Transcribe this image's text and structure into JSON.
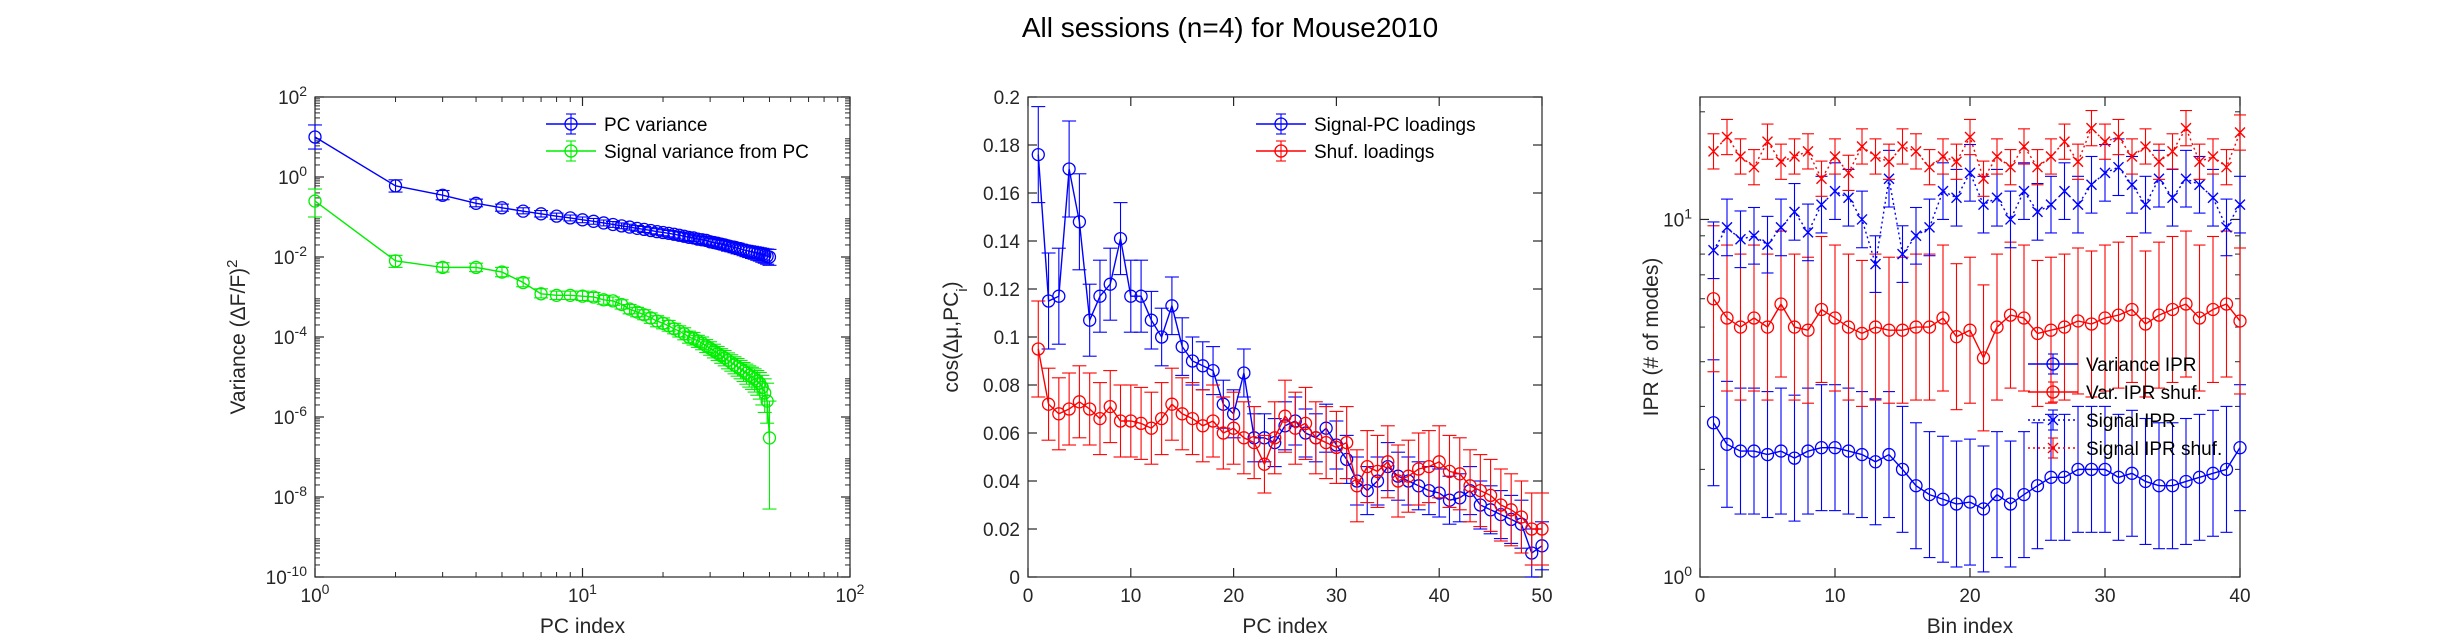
{
  "figure": {
    "title": "All sessions (n=4) for Mouse2010"
  },
  "chart_data": [
    {
      "type": "line",
      "xscale": "log",
      "yscale": "log",
      "xlim": [
        1,
        100
      ],
      "ylim": [
        1e-10,
        100
      ],
      "xlabel": "PC index",
      "ylabel_parts": [
        "Variance (",
        "Δ",
        "F/F)",
        "2"
      ],
      "xticks": [
        1,
        10,
        100
      ],
      "xtick_labels": [
        [
          "10",
          "0"
        ],
        [
          "10",
          "1"
        ],
        [
          "10",
          "2"
        ]
      ],
      "yticks": [
        1e-10,
        1e-08,
        1e-06,
        0.0001,
        0.01,
        1,
        100
      ],
      "ytick_labels": [
        [
          "10",
          "-10"
        ],
        [
          "10",
          "-8"
        ],
        [
          "10",
          "-6"
        ],
        [
          "10",
          "-4"
        ],
        [
          "10",
          "-2"
        ],
        [
          "10",
          "0"
        ],
        [
          "10",
          "2"
        ]
      ],
      "legend_position": "top-right",
      "x": [
        1,
        2,
        3,
        4,
        5,
        6,
        7,
        8,
        9,
        10,
        11,
        12,
        13,
        14,
        15,
        16,
        17,
        18,
        19,
        20,
        21,
        22,
        23,
        24,
        25,
        26,
        27,
        28,
        29,
        30,
        31,
        32,
        33,
        34,
        35,
        36,
        37,
        38,
        39,
        40,
        41,
        42,
        43,
        44,
        45,
        46,
        47,
        48,
        49,
        50
      ],
      "series": [
        {
          "name": "PC variance",
          "color": "#0000ff",
          "marker": "circle",
          "values": [
            10,
            0.6,
            0.35,
            0.22,
            0.17,
            0.14,
            0.12,
            0.105,
            0.095,
            0.085,
            0.078,
            0.071,
            0.065,
            0.06,
            0.056,
            0.052,
            0.049,
            0.046,
            0.043,
            0.041,
            0.039,
            0.037,
            0.035,
            0.033,
            0.031,
            0.03,
            0.028,
            0.027,
            0.026,
            0.024,
            0.023,
            0.022,
            0.021,
            0.02,
            0.019,
            0.018,
            0.0175,
            0.0165,
            0.016,
            0.015,
            0.0145,
            0.014,
            0.0135,
            0.013,
            0.0125,
            0.012,
            0.0115,
            0.011,
            0.0105,
            0.01
          ],
          "error_low": [
            5,
            0.42,
            0.27,
            0.18,
            0.14,
            0.12,
            0.1,
            0.088,
            0.08,
            0.072,
            0.066,
            0.06,
            0.055,
            0.051,
            0.047,
            0.044,
            0.041,
            0.038,
            0.036,
            0.034,
            0.032,
            0.03,
            0.028,
            0.026,
            0.025,
            0.024,
            0.022,
            0.021,
            0.02,
            0.019,
            0.018,
            0.017,
            0.016,
            0.015,
            0.014,
            0.0135,
            0.0128,
            0.012,
            0.0115,
            0.0108,
            0.0102,
            0.0097,
            0.0092,
            0.0088,
            0.0083,
            0.0079,
            0.0074,
            0.007,
            0.0066,
            0.0062
          ],
          "error_high": [
            20,
            0.85,
            0.46,
            0.28,
            0.21,
            0.17,
            0.145,
            0.125,
            0.112,
            0.1,
            0.092,
            0.084,
            0.077,
            0.071,
            0.066,
            0.061,
            0.058,
            0.054,
            0.051,
            0.048,
            0.046,
            0.044,
            0.042,
            0.04,
            0.038,
            0.036,
            0.034,
            0.033,
            0.032,
            0.03,
            0.029,
            0.028,
            0.027,
            0.026,
            0.025,
            0.024,
            0.023,
            0.022,
            0.021,
            0.02,
            0.0195,
            0.019,
            0.0185,
            0.018,
            0.0175,
            0.017,
            0.0165,
            0.016,
            0.0158,
            0.0155
          ]
        },
        {
          "name": "Signal variance from PC",
          "color": "#00ee00",
          "marker": "circle",
          "values": [
            0.25,
            0.008,
            0.0055,
            0.0055,
            0.0042,
            0.0023,
            0.0012,
            0.0011,
            0.0011,
            0.00105,
            0.001,
            0.00085,
            0.0008,
            0.00065,
            0.0005,
            0.00042,
            0.00036,
            0.0003,
            0.00025,
            0.00022,
            0.00019,
            0.00016,
            0.00014,
            0.00012,
            0.0001,
            9e-05,
            8e-05,
            7e-05,
            6e-05,
            5.2e-05,
            4.5e-05,
            3.9e-05,
            3.4e-05,
            3e-05,
            2.6e-05,
            2.3e-05,
            2e-05,
            1.8e-05,
            1.6e-05,
            1.4e-05,
            1.25e-05,
            1.1e-05,
            1e-05,
            9e-06,
            8e-06,
            7e-06,
            5.5e-06,
            4e-06,
            2.5e-06,
            3e-07
          ],
          "error_low": [
            0.1,
            0.0055,
            0.0042,
            0.0043,
            0.0032,
            0.0018,
            0.00095,
            0.00087,
            0.00087,
            0.00082,
            0.00078,
            0.00066,
            0.00062,
            0.0005,
            0.00038,
            0.00032,
            0.00027,
            0.00022,
            0.00018,
            0.00016,
            0.00014,
            0.00012,
            0.0001,
            8.5e-05,
            7e-05,
            6.3e-05,
            5.5e-05,
            4.8e-05,
            4.1e-05,
            3.5e-05,
            3e-05,
            2.6e-05,
            2.2e-05,
            1.9e-05,
            1.6e-05,
            1.4e-05,
            1.2e-05,
            1.05e-05,
            9e-06,
            7.7e-06,
            6.6e-06,
            5.6e-06,
            4.9e-06,
            4.2e-06,
            3.5e-06,
            2.8e-06,
            2e-06,
            1.3e-06,
            7e-07,
            5e-09
          ],
          "error_high": [
            0.5,
            0.011,
            0.0072,
            0.007,
            0.0055,
            0.003,
            0.0016,
            0.0014,
            0.0014,
            0.0014,
            0.0013,
            0.0011,
            0.001,
            0.00085,
            0.00065,
            0.00055,
            0.00048,
            0.0004,
            0.00034,
            0.0003,
            0.00026,
            0.00022,
            0.00019,
            0.00017,
            0.00014,
            0.00013,
            0.00011,
            0.0001,
            8.6e-05,
            7.6e-05,
            6.6e-05,
            5.8e-05,
            5.1e-05,
            4.6e-05,
            4e-05,
            3.6e-05,
            3.2e-05,
            2.9e-05,
            2.6e-05,
            2.3e-05,
            2.1e-05,
            1.9e-05,
            1.75e-05,
            1.6e-05,
            1.45e-05,
            1.3e-05,
            1.1e-05,
            9e-06,
            7e-06,
            2.5e-06
          ]
        }
      ]
    },
    {
      "type": "line",
      "xscale": "linear",
      "yscale": "linear",
      "xlim": [
        0,
        50
      ],
      "ylim": [
        0,
        0.2
      ],
      "xlabel": "PC index",
      "ylabel_parts": [
        "cos(",
        "Δμ",
        ",PC",
        "i",
        ")"
      ],
      "xticks": [
        0,
        10,
        20,
        30,
        40,
        50
      ],
      "xtick_labels": [
        "0",
        "10",
        "20",
        "30",
        "40",
        "50"
      ],
      "yticks": [
        0,
        0.02,
        0.04,
        0.06,
        0.08,
        0.1,
        0.12,
        0.14,
        0.16,
        0.18,
        0.2
      ],
      "ytick_labels": [
        "0",
        "0.02",
        "0.04",
        "0.06",
        "0.08",
        "0.1",
        "0.12",
        "0.14",
        "0.16",
        "0.18",
        "0.2"
      ],
      "legend_position": "top-right",
      "x": [
        1,
        2,
        3,
        4,
        5,
        6,
        7,
        8,
        9,
        10,
        11,
        12,
        13,
        14,
        15,
        16,
        17,
        18,
        19,
        20,
        21,
        22,
        23,
        24,
        25,
        26,
        27,
        28,
        29,
        30,
        31,
        32,
        33,
        34,
        35,
        36,
        37,
        38,
        39,
        40,
        41,
        42,
        43,
        44,
        45,
        46,
        47,
        48,
        49,
        50
      ],
      "series": [
        {
          "name": "Signal-PC loadings",
          "color": "#0000ff",
          "marker": "circle",
          "values": [
            0.176,
            0.115,
            0.117,
            0.17,
            0.148,
            0.107,
            0.117,
            0.122,
            0.141,
            0.117,
            0.117,
            0.107,
            0.1,
            0.113,
            0.096,
            0.09,
            0.088,
            0.086,
            0.072,
            0.068,
            0.085,
            0.058,
            0.058,
            0.056,
            0.063,
            0.065,
            0.06,
            0.058,
            0.062,
            0.055,
            0.049,
            0.04,
            0.036,
            0.04,
            0.046,
            0.042,
            0.04,
            0.038,
            0.036,
            0.035,
            0.032,
            0.033,
            0.036,
            0.03,
            0.028,
            0.026,
            0.024,
            0.022,
            0.01,
            0.013
          ],
          "errors": [
            0.02,
            0.02,
            0.02,
            0.02,
            0.02,
            0.015,
            0.015,
            0.015,
            0.015,
            0.015,
            0.015,
            0.012,
            0.012,
            0.012,
            0.012,
            0.01,
            0.01,
            0.01,
            0.01,
            0.01,
            0.01,
            0.01,
            0.01,
            0.01,
            0.01,
            0.01,
            0.01,
            0.01,
            0.01,
            0.01,
            0.01,
            0.01,
            0.01,
            0.01,
            0.01,
            0.01,
            0.01,
            0.01,
            0.01,
            0.01,
            0.01,
            0.01,
            0.01,
            0.01,
            0.01,
            0.01,
            0.01,
            0.01,
            0.01,
            0.01
          ]
        },
        {
          "name": "Shuf. loadings",
          "color": "#ff0000",
          "marker": "circle",
          "values": [
            0.095,
            0.072,
            0.068,
            0.07,
            0.073,
            0.07,
            0.066,
            0.071,
            0.065,
            0.065,
            0.064,
            0.062,
            0.066,
            0.072,
            0.068,
            0.066,
            0.063,
            0.065,
            0.06,
            0.062,
            0.058,
            0.056,
            0.047,
            0.058,
            0.067,
            0.062,
            0.064,
            0.058,
            0.056,
            0.054,
            0.056,
            0.038,
            0.046,
            0.044,
            0.048,
            0.04,
            0.042,
            0.045,
            0.046,
            0.048,
            0.044,
            0.043,
            0.038,
            0.036,
            0.034,
            0.03,
            0.028,
            0.025,
            0.02,
            0.02
          ],
          "errors": [
            0.02,
            0.015,
            0.015,
            0.015,
            0.015,
            0.015,
            0.015,
            0.015,
            0.015,
            0.015,
            0.015,
            0.015,
            0.015,
            0.015,
            0.015,
            0.015,
            0.015,
            0.015,
            0.015,
            0.015,
            0.015,
            0.015,
            0.012,
            0.015,
            0.015,
            0.015,
            0.015,
            0.015,
            0.015,
            0.015,
            0.015,
            0.015,
            0.015,
            0.015,
            0.015,
            0.015,
            0.015,
            0.015,
            0.015,
            0.015,
            0.015,
            0.015,
            0.015,
            0.015,
            0.015,
            0.015,
            0.015,
            0.015,
            0.015,
            0.015
          ]
        }
      ]
    },
    {
      "type": "line",
      "xscale": "linear",
      "yscale": "log",
      "xlim": [
        0,
        40
      ],
      "ylim": [
        1,
        22
      ],
      "xlabel": "Bin index",
      "ylabel": "IPR (# of modes)",
      "xticks": [
        0,
        10,
        20,
        30,
        40
      ],
      "xtick_labels": [
        "0",
        "10",
        "20",
        "30",
        "40"
      ],
      "yticks": [
        1,
        10
      ],
      "ytick_labels": [
        [
          "10",
          "0"
        ],
        [
          "10",
          "1"
        ]
      ],
      "legend_position": "middle-right",
      "x": [
        1,
        2,
        3,
        4,
        5,
        6,
        7,
        8,
        9,
        10,
        11,
        12,
        13,
        14,
        15,
        16,
        17,
        18,
        19,
        20,
        21,
        22,
        23,
        24,
        25,
        26,
        27,
        28,
        29,
        30,
        31,
        32,
        33,
        34,
        35,
        36,
        37,
        38,
        39,
        40
      ],
      "series": [
        {
          "name": "Variance IPR",
          "color": "#0000ff",
          "marker": "circle",
          "linestyle": "solid",
          "values": [
            2.7,
            2.35,
            2.25,
            2.25,
            2.2,
            2.25,
            2.15,
            2.25,
            2.3,
            2.3,
            2.25,
            2.2,
            2.1,
            2.2,
            2.0,
            1.8,
            1.7,
            1.65,
            1.6,
            1.62,
            1.55,
            1.7,
            1.6,
            1.7,
            1.8,
            1.9,
            1.9,
            2.0,
            2.0,
            2.0,
            1.9,
            1.95,
            1.85,
            1.8,
            1.8,
            1.85,
            1.9,
            1.95,
            2.0,
            2.3
          ],
          "error_factor": 1.5
        },
        {
          "name": "Var. IPR shuf.",
          "color": "#ff0000",
          "marker": "circle",
          "linestyle": "solid",
          "values": [
            6.0,
            5.3,
            5.0,
            5.3,
            5.0,
            5.8,
            5.0,
            4.9,
            5.6,
            5.3,
            5.0,
            4.8,
            5.0,
            4.9,
            4.9,
            5.0,
            5.0,
            5.3,
            4.7,
            4.9,
            4.1,
            5.0,
            5.4,
            5.3,
            4.8,
            4.9,
            5.0,
            5.2,
            5.1,
            5.3,
            5.4,
            5.6,
            5.1,
            5.4,
            5.6,
            5.8,
            5.3,
            5.6,
            5.8,
            5.2
          ],
          "error_factor": 1.6
        },
        {
          "name": "Signal IPR",
          "color": "#0000ff",
          "marker": "x",
          "linestyle": "dotted",
          "values": [
            8.2,
            9.5,
            8.8,
            9.0,
            8.5,
            9.5,
            10.5,
            9.2,
            11.0,
            12.0,
            11.5,
            10.0,
            7.5,
            13.0,
            8.0,
            9.0,
            9.5,
            12.0,
            11.5,
            13.5,
            11.0,
            11.5,
            10.0,
            12.0,
            10.5,
            11.0,
            12.0,
            11.0,
            12.5,
            13.5,
            14.0,
            12.5,
            11.0,
            13.0,
            11.5,
            13.0,
            12.5,
            11.5,
            9.5,
            11.0
          ],
          "error_factor": 1.2
        },
        {
          "name": "Signal IPR shuf.",
          "color": "#ff0000",
          "marker": "x",
          "linestyle": "dotted",
          "values": [
            15.5,
            17.0,
            15.0,
            14.0,
            16.5,
            14.5,
            15.0,
            15.5,
            13.0,
            15.0,
            13.5,
            16.0,
            15.0,
            14.5,
            16.0,
            15.5,
            14.0,
            15.0,
            14.5,
            17.0,
            13.0,
            15.0,
            14.0,
            16.0,
            14.0,
            15.0,
            16.5,
            14.5,
            18.0,
            16.5,
            17.0,
            15.0,
            16.0,
            14.5,
            15.5,
            18.0,
            14.5,
            15.0,
            14.0,
            17.5
          ],
          "error_factor": 1.12
        }
      ]
    }
  ]
}
